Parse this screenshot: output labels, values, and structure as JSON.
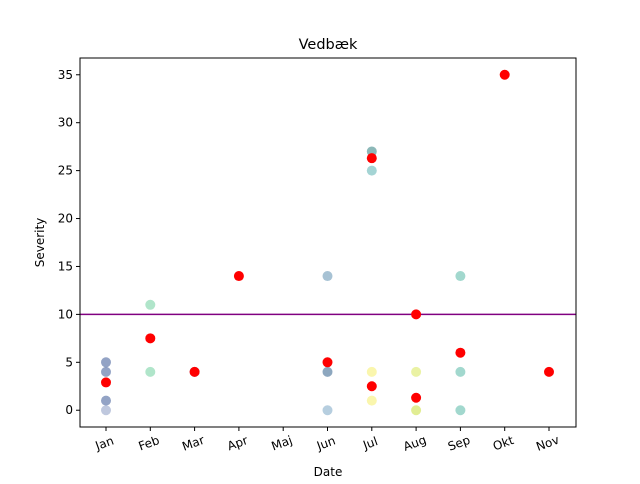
{
  "chart_data": {
    "type": "scatter",
    "title": "Vedbæk",
    "xlabel": "Date",
    "ylabel": "Severity",
    "categories": [
      "Jan",
      "Feb",
      "Mar",
      "Apr",
      "Maj",
      "Jun",
      "Jul",
      "Aug",
      "Sep",
      "Okt",
      "Nov"
    ],
    "ylim": [
      -1.75,
      36.75
    ],
    "yticks": [
      0,
      5,
      10,
      15,
      20,
      25,
      30,
      35
    ],
    "threshold": {
      "value": 10,
      "color": "#800080"
    },
    "grid": false,
    "points": [
      {
        "x": "Jan",
        "y": 5,
        "color": "#3a5896"
      },
      {
        "x": "Jan",
        "y": 4,
        "color": "#3a5896"
      },
      {
        "x": "Jan",
        "y": 1,
        "color": "#3a5896"
      },
      {
        "x": "Jan",
        "y": 0,
        "color": "#8a9bc2"
      },
      {
        "x": "Feb",
        "y": 11,
        "color": "#6fcf9e"
      },
      {
        "x": "Feb",
        "y": 4,
        "color": "#6fcf9e"
      },
      {
        "x": "Mar",
        "y": 4,
        "color": "#2b2d6e"
      },
      {
        "x": "Jun",
        "y": 14,
        "color": "#5e8fb0"
      },
      {
        "x": "Jun",
        "y": 4,
        "color": "#2f5e8a"
      },
      {
        "x": "Jun",
        "y": 0,
        "color": "#7aa5c4"
      },
      {
        "x": "Jul",
        "y": 27,
        "color": "#2d7d7d"
      },
      {
        "x": "Jul",
        "y": 25,
        "color": "#5ab0b0"
      },
      {
        "x": "Jul",
        "y": 4,
        "color": "#f5ef6a"
      },
      {
        "x": "Jul",
        "y": 1,
        "color": "#f5ef6a"
      },
      {
        "x": "Aug",
        "y": 4,
        "color": "#d8e85a"
      },
      {
        "x": "Aug",
        "y": 0,
        "color": "#c8df3a"
      },
      {
        "x": "Sep",
        "y": 14,
        "color": "#56b8a6"
      },
      {
        "x": "Sep",
        "y": 4,
        "color": "#56b8a6"
      },
      {
        "x": "Sep",
        "y": 0,
        "color": "#56b8a6"
      }
    ],
    "red_points": [
      {
        "x": "Jan",
        "y": 2.9
      },
      {
        "x": "Feb",
        "y": 7.5
      },
      {
        "x": "Mar",
        "y": 4
      },
      {
        "x": "Apr",
        "y": 14
      },
      {
        "x": "Jun",
        "y": 5
      },
      {
        "x": "Jul",
        "y": 26.3
      },
      {
        "x": "Jul",
        "y": 2.5
      },
      {
        "x": "Aug",
        "y": 10
      },
      {
        "x": "Aug",
        "y": 1.3
      },
      {
        "x": "Sep",
        "y": 6
      },
      {
        "x": "Okt",
        "y": 35
      },
      {
        "x": "Nov",
        "y": 4
      }
    ],
    "red_color": "#ff0000"
  }
}
